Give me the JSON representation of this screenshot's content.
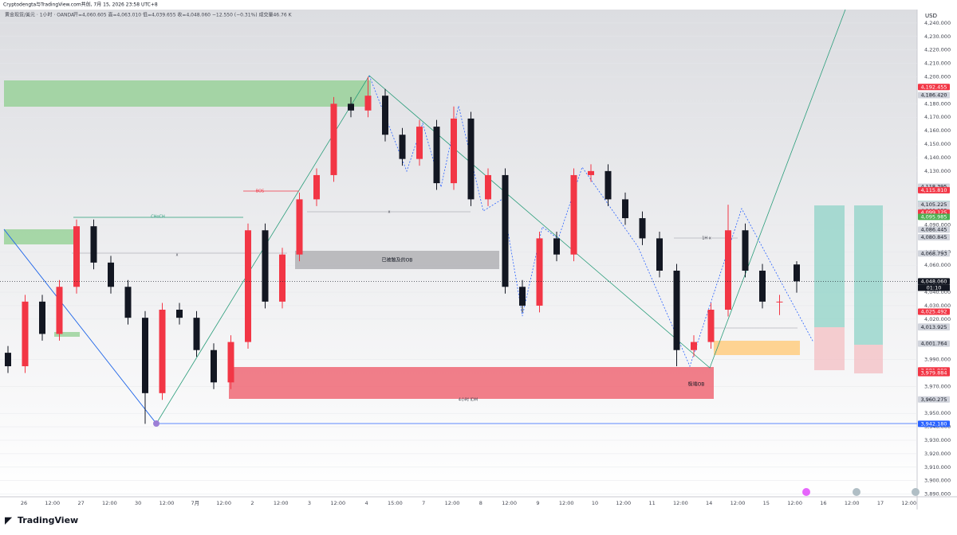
{
  "header": {
    "line1": "Cryptodengta与TradingView.com共创, 7月 15, 2026 23:58 UTC+8",
    "symbol": "黄金现货/美元 · 1小时 · OANDA",
    "ohlc": "开=4,060.605 高=4,063.010 低=4,039.655 收=4,048.060 −12.550 (−0.31%) 成交量46.76 K"
  },
  "price_axis": {
    "currency": "USD",
    "ylim": [
      3888,
      4250
    ],
    "ticks": [
      {
        "value": 3890,
        "label": "3,890.000"
      },
      {
        "value": 3900,
        "label": "3,900.000"
      },
      {
        "value": 3910,
        "label": "3,910.000"
      },
      {
        "value": 3920,
        "label": "3,920.000"
      },
      {
        "value": 3930,
        "label": "3,930.000"
      },
      {
        "value": 3940,
        "label": "3,940.000"
      },
      {
        "value": 3950,
        "label": "3,950.000"
      },
      {
        "value": 3970,
        "label": "3,970.000"
      },
      {
        "value": 3990,
        "label": "3,990.000"
      },
      {
        "value": 4020,
        "label": "4,020.000"
      },
      {
        "value": 4030,
        "label": "4,030.000"
      },
      {
        "value": 4040,
        "label": "4,040.000"
      },
      {
        "value": 4060,
        "label": "4,060.000"
      },
      {
        "value": 4070,
        "label": "4,070.000"
      },
      {
        "value": 4090,
        "label": "4,090.000"
      },
      {
        "value": 4130,
        "label": "4,130.000"
      },
      {
        "value": 4140,
        "label": "4,140.000"
      },
      {
        "value": 4150,
        "label": "4,150.000"
      },
      {
        "value": 4160,
        "label": "4,160.000"
      },
      {
        "value": 4170,
        "label": "4,170.000"
      },
      {
        "value": 4180,
        "label": "4,180.000"
      },
      {
        "value": 4200,
        "label": "4,200.000"
      },
      {
        "value": 4210,
        "label": "4,210.000"
      },
      {
        "value": 4220,
        "label": "4,220.000"
      },
      {
        "value": 4230,
        "label": "4,230.000"
      },
      {
        "value": 4240,
        "label": "4,240.000"
      }
    ],
    "tags": [
      {
        "value": 4192.455,
        "label": "4,192.455",
        "color": "#f23645",
        "text_color": "#ffffff"
      },
      {
        "value": 4186.42,
        "label": "4,186.420",
        "color": "#d1d4dc",
        "text_color": "#131722"
      },
      {
        "value": 4118.395,
        "label": "4,118.395",
        "color": "#d1d4dc",
        "text_color": "#131722"
      },
      {
        "value": 4115.81,
        "label": "4,115.810",
        "color": "#f23645",
        "text_color": "#ffffff"
      },
      {
        "value": 4105.403,
        "label": "4,105.403",
        "color": "#089981",
        "text_color": "#ffffff"
      },
      {
        "value": 4105.403,
        "label": "4,105.403",
        "color": "#089981",
        "text_color": "#ffffff"
      },
      {
        "value": 4105.225,
        "label": "4,105.225",
        "color": "#d1d4dc",
        "text_color": "#131722"
      },
      {
        "value": 4100.355,
        "label": "4,100.355",
        "color": "#d1d4dc",
        "text_color": "#131722"
      },
      {
        "value": 4099.125,
        "label": "4,099.125",
        "color": "#f23645",
        "text_color": "#ffffff"
      },
      {
        "value": 4095.985,
        "label": "4,095.985",
        "color": "#4caf50",
        "text_color": "#ffffff"
      },
      {
        "value": 4086.445,
        "label": "4,086.445",
        "color": "#d1d4dc",
        "text_color": "#131722"
      },
      {
        "value": 4080.845,
        "label": "4,080.845",
        "color": "#d1d4dc",
        "text_color": "#131722"
      },
      {
        "value": 4068.793,
        "label": "4,068.793",
        "color": "#d1d4dc",
        "text_color": "#131722"
      },
      {
        "value": 4048.06,
        "label": "4,048.060",
        "color": "#131722",
        "text_color": "#ffffff"
      },
      {
        "value": 4025.492,
        "label": "4,025.492",
        "color": "#f23645",
        "text_color": "#ffffff"
      },
      {
        "value": 4014.431,
        "label": "4,014.431",
        "color": "#d1d4dc",
        "text_color": "#131722"
      },
      {
        "value": 4013.925,
        "label": "4,013.925",
        "color": "#d1d4dc",
        "text_color": "#131722"
      },
      {
        "value": 4001.764,
        "label": "4,001.764",
        "color": "#d1d4dc",
        "text_color": "#131722"
      },
      {
        "value": 3981.9,
        "label": "3,981.900",
        "color": "#f23645",
        "text_color": "#ffffff"
      },
      {
        "value": 3979.884,
        "label": "3,979.884",
        "color": "#f23645",
        "text_color": "#ffffff"
      },
      {
        "value": 3960.275,
        "label": "3,960.275",
        "color": "#d1d4dc",
        "text_color": "#131722"
      },
      {
        "value": 3942.18,
        "label": "3,942.180",
        "color": "#2962ff",
        "text_color": "#ffffff"
      }
    ],
    "countdown": "01:10"
  },
  "time_axis": {
    "labels": [
      "26",
      "12:00",
      "27",
      "12:00",
      "30",
      "12:00",
      "7月",
      "12:00",
      "2",
      "12:00",
      "3",
      "12:00",
      "4",
      "15:00",
      "7",
      "12:00",
      "8",
      "12:00",
      "9",
      "12:00",
      "10",
      "12:00",
      "11",
      "12:00",
      "14",
      "12:00",
      "15",
      "12:00",
      "16",
      "12:00",
      "17",
      "12:00"
    ]
  },
  "candles": {
    "up_color": "#f23645",
    "down_color": "#131722",
    "ohlc": [
      [
        3995,
        4000,
        3980,
        3985
      ],
      [
        3985,
        4038,
        3980,
        4033
      ],
      [
        4033,
        4038,
        4004,
        4009
      ],
      [
        4009,
        4049,
        4004,
        4044
      ],
      [
        4044,
        4094,
        4039,
        4089
      ],
      [
        4089,
        4094,
        4057,
        4062
      ],
      [
        4062,
        4067,
        4039,
        4044
      ],
      [
        4044,
        4049,
        4016,
        4021
      ],
      [
        4021,
        4026,
        3942.18,
        3965
      ],
      [
        3965,
        4032,
        3960,
        4027
      ],
      [
        4027,
        4032,
        4016,
        4021
      ],
      [
        4021,
        4026,
        3992,
        3997
      ],
      [
        3997,
        4002,
        3968,
        3973
      ],
      [
        3973,
        4008,
        3968,
        4003
      ],
      [
        4003,
        4091,
        3998,
        4086
      ],
      [
        4086,
        4091,
        4028,
        4033
      ],
      [
        4033,
        4073,
        4028,
        4068
      ],
      [
        4068,
        4114,
        4063,
        4109
      ],
      [
        4109,
        4132,
        4104,
        4127
      ],
      [
        4127,
        4185,
        4122,
        4180
      ],
      [
        4180,
        4185,
        4170,
        4175
      ],
      [
        4175,
        4200,
        4170,
        4186
      ],
      [
        4186,
        4191,
        4152,
        4157
      ],
      [
        4157,
        4162,
        4134,
        4139
      ],
      [
        4139,
        4168,
        4134,
        4163
      ],
      [
        4163,
        4168,
        4116,
        4121
      ],
      [
        4121,
        4178,
        4116,
        4169
      ],
      [
        4169,
        4174,
        4104,
        4109
      ],
      [
        4109,
        4132,
        4104,
        4127
      ],
      [
        4127,
        4132,
        4039,
        4044
      ],
      [
        4044,
        4049,
        4025,
        4030
      ],
      [
        4030,
        4085,
        4025,
        4080
      ],
      [
        4080,
        4085,
        4063,
        4068
      ],
      [
        4068,
        4132,
        4063,
        4127
      ],
      [
        4127,
        4135,
        4122,
        4130
      ],
      [
        4130,
        4135,
        4104,
        4109
      ],
      [
        4109,
        4114,
        4090,
        4095
      ],
      [
        4095,
        4100,
        4075,
        4080
      ],
      [
        4080,
        4085,
        4051,
        4056
      ],
      [
        4056,
        4061,
        3985,
        3997
      ],
      [
        3997,
        4008,
        3992,
        4003
      ],
      [
        4003,
        4032,
        3998,
        4027
      ],
      [
        4027,
        4105,
        4022,
        4086
      ],
      [
        4086,
        4091,
        4051,
        4056
      ],
      [
        4056,
        4061,
        4028,
        4033
      ],
      [
        4033,
        4038,
        4023,
        4033
      ],
      [
        4060.605,
        4063.01,
        4039.655,
        4048.06
      ]
    ]
  },
  "annotations": {
    "bos": "BOS",
    "choch": "CHoCH",
    "x1": "x",
    "x2": "x",
    "touched_ob": "已被触及的OB",
    "h1x": "1H x",
    "extreme_ob": "极端OB",
    "idm": "4小时 IDM"
  },
  "footer": {
    "brand": "TradingView"
  }
}
